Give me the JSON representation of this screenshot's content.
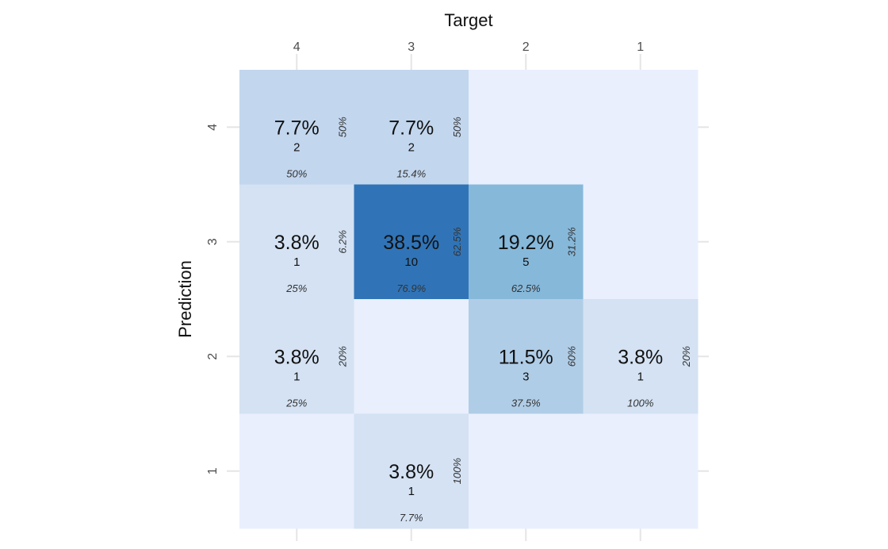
{
  "chart_data": {
    "type": "heatmap",
    "title": "",
    "xlabel": "Target",
    "ylabel": "Prediction",
    "x_categories": [
      "4",
      "3",
      "2",
      "1"
    ],
    "y_categories": [
      "4",
      "3",
      "2",
      "1"
    ],
    "colors": {
      "empty": "#e9effd",
      "low": "#d4e2f3",
      "mid_low": "#c2d6ee",
      "mid": "#b0cde7",
      "mid_high": "#86b8da",
      "high": "#3074b7",
      "grid": "#e5e5e5"
    },
    "cells": [
      {
        "prediction": "4",
        "target": "4",
        "percentage": "7.7%",
        "count": "2",
        "row_pct": "50%",
        "col_pct": "50%"
      },
      {
        "prediction": "4",
        "target": "3",
        "percentage": "7.7%",
        "count": "2",
        "row_pct": "50%",
        "col_pct": "15.4%"
      },
      {
        "prediction": "4",
        "target": "2",
        "percentage": "",
        "count": "",
        "row_pct": "",
        "col_pct": ""
      },
      {
        "prediction": "4",
        "target": "1",
        "percentage": "",
        "count": "",
        "row_pct": "",
        "col_pct": ""
      },
      {
        "prediction": "3",
        "target": "4",
        "percentage": "3.8%",
        "count": "1",
        "row_pct": "6.2%",
        "col_pct": "25%"
      },
      {
        "prediction": "3",
        "target": "3",
        "percentage": "38.5%",
        "count": "10",
        "row_pct": "62.5%",
        "col_pct": "76.9%"
      },
      {
        "prediction": "3",
        "target": "2",
        "percentage": "19.2%",
        "count": "5",
        "row_pct": "31.2%",
        "col_pct": "62.5%"
      },
      {
        "prediction": "3",
        "target": "1",
        "percentage": "",
        "count": "",
        "row_pct": "",
        "col_pct": ""
      },
      {
        "prediction": "2",
        "target": "4",
        "percentage": "3.8%",
        "count": "1",
        "row_pct": "20%",
        "col_pct": "25%"
      },
      {
        "prediction": "2",
        "target": "3",
        "percentage": "",
        "count": "",
        "row_pct": "",
        "col_pct": ""
      },
      {
        "prediction": "2",
        "target": "2",
        "percentage": "11.5%",
        "count": "3",
        "row_pct": "60%",
        "col_pct": "37.5%"
      },
      {
        "prediction": "2",
        "target": "1",
        "percentage": "3.8%",
        "count": "1",
        "row_pct": "20%",
        "col_pct": "100%"
      },
      {
        "prediction": "1",
        "target": "4",
        "percentage": "",
        "count": "",
        "row_pct": "",
        "col_pct": ""
      },
      {
        "prediction": "1",
        "target": "3",
        "percentage": "3.8%",
        "count": "1",
        "row_pct": "100%",
        "col_pct": "7.7%"
      },
      {
        "prediction": "1",
        "target": "2",
        "percentage": "",
        "count": "",
        "row_pct": "",
        "col_pct": ""
      },
      {
        "prediction": "1",
        "target": "1",
        "percentage": "",
        "count": "",
        "row_pct": "",
        "col_pct": ""
      }
    ],
    "grid": true,
    "legend": "none"
  }
}
